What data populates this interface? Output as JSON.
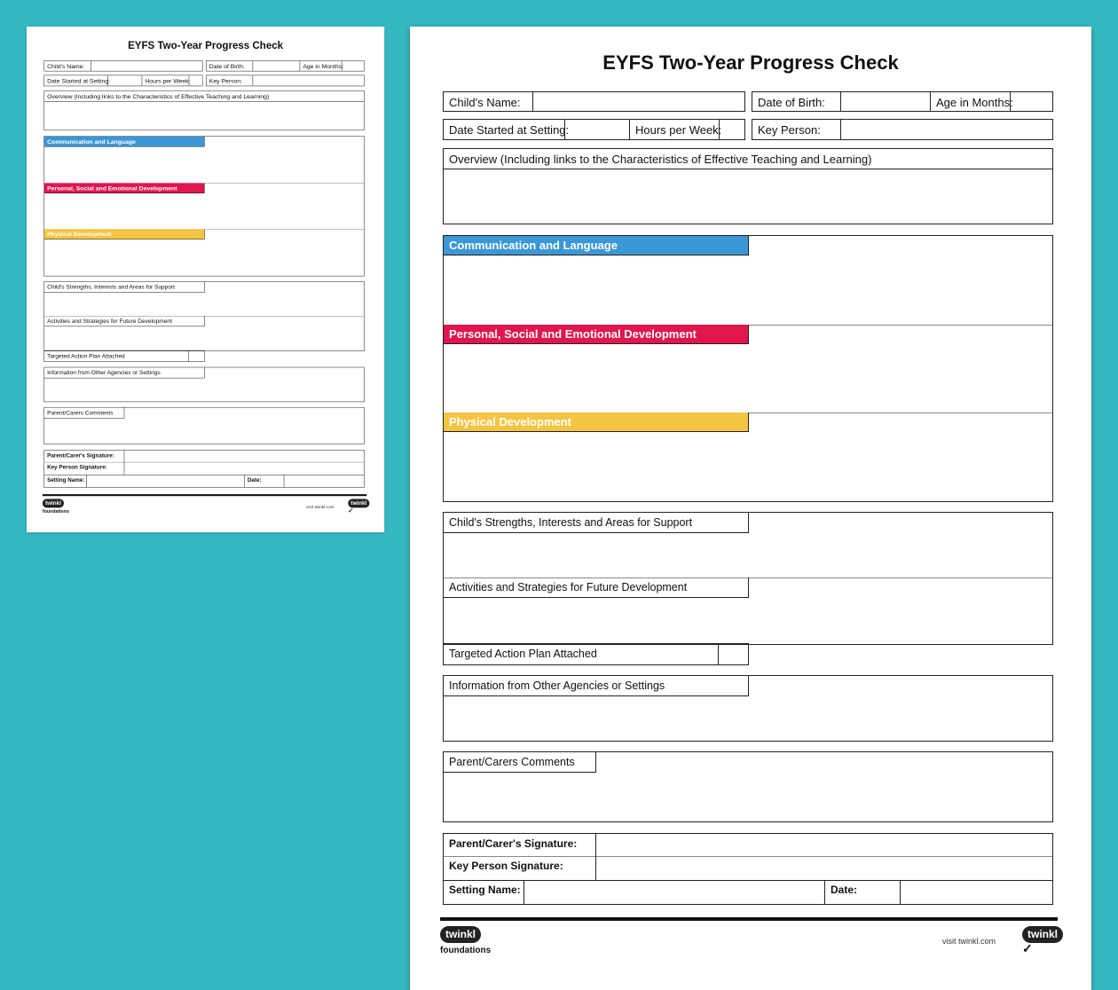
{
  "document": {
    "title": "EYFS Two-Year Progress Check",
    "fields": {
      "childs_name": "Child's Name:",
      "date_of_birth": "Date of Birth:",
      "age_in_months": "Age in Months:",
      "date_started": "Date Started at Setting:",
      "hours_per_week": "Hours per Week:",
      "key_person": "Key Person:"
    },
    "overview": "Overview (Including links to the Characteristics of Effective Teaching and Learning)",
    "areas": [
      {
        "label": "Communication and Language",
        "color": "#3b97d6"
      },
      {
        "label": "Personal, Social and Emotional Development",
        "color": "#e0164d"
      },
      {
        "label": "Physical Development",
        "color": "#f4c542"
      }
    ],
    "strengths": "Child's Strengths, Interests and Areas for Support",
    "activities": "Activities and Strategies for Future Development",
    "targeted_plan": "Targeted Action Plan Attached",
    "other_agencies": "Information from Other Agencies or Settings",
    "parent_comments": "Parent/Carers Comments",
    "parent_signature": "Parent/Carer's Signature:",
    "key_person_signature": "Key Person Signature:",
    "setting_name": "Setting Name:",
    "date": "Date:",
    "footer": {
      "logo_left": "twinkl foundations",
      "visit_text": "visit twinkl.com",
      "logo_right": "twinkl"
    }
  },
  "colors": {
    "background": "#35b9c0"
  }
}
